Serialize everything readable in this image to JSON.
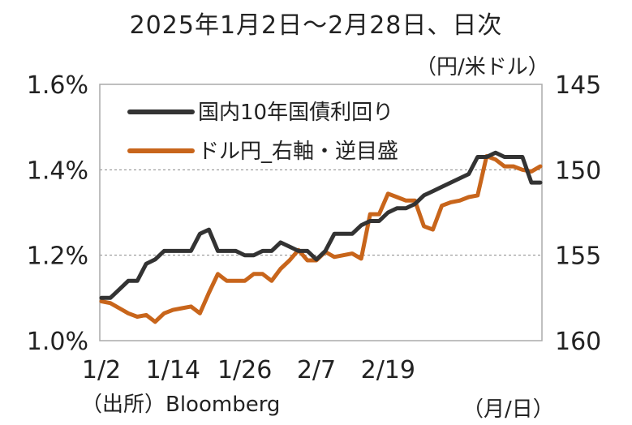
{
  "title": "2025年1月2日～2月28日、日次",
  "source": "（出所）Bloomberg",
  "chart_data": {
    "type": "line",
    "x_unit": "（月/日）",
    "left_axis": {
      "range": [
        1.0,
        1.6
      ],
      "ticks": [
        "1.0%",
        "1.2%",
        "1.4%",
        "1.6%"
      ],
      "tick_values": [
        1.0,
        1.2,
        1.4,
        1.6
      ]
    },
    "right_axis": {
      "unit": "（円/米ドル）",
      "range": [
        160,
        145
      ],
      "inverted": true,
      "ticks": [
        "145",
        "150",
        "155",
        "160"
      ],
      "tick_values": [
        145,
        150,
        155,
        160
      ]
    },
    "x_ticks": [
      {
        "label": "1/2",
        "index": 0
      },
      {
        "label": "1/14",
        "index": 8
      },
      {
        "label": "1/26",
        "index": 16
      },
      {
        "label": "2/7",
        "index": 24
      },
      {
        "label": "2/19",
        "index": 32
      }
    ],
    "grid": "horizontal dashed at 1.2% and 1.4%",
    "legend_placement": "top-left",
    "colors": {
      "jgb": "#333333",
      "usdjpy": "#c8651b",
      "grid": "#888888",
      "frame": "#aaaaaa"
    },
    "series": [
      {
        "name": "国内10年国債利回り",
        "axis": "left",
        "x": [
          0,
          1,
          2,
          3,
          4,
          5,
          6,
          7,
          8,
          9,
          10,
          11,
          12,
          13,
          14,
          15,
          16,
          17,
          18,
          19,
          20,
          21,
          22,
          23,
          24,
          25,
          26,
          27,
          28,
          29,
          30,
          31,
          32,
          33,
          34,
          35,
          36,
          37,
          38,
          39,
          40,
          41,
          42,
          43,
          44,
          45,
          46,
          47,
          48,
          49
        ],
        "values": [
          1.1,
          1.1,
          1.12,
          1.14,
          1.14,
          1.18,
          1.19,
          1.21,
          1.21,
          1.21,
          1.21,
          1.25,
          1.26,
          1.21,
          1.21,
          1.21,
          1.2,
          1.2,
          1.21,
          1.21,
          1.23,
          1.22,
          1.21,
          1.21,
          1.19,
          1.21,
          1.25,
          1.25,
          1.25,
          1.27,
          1.28,
          1.28,
          1.3,
          1.31,
          1.31,
          1.32,
          1.34,
          1.35,
          1.36,
          1.37,
          1.38,
          1.39,
          1.43,
          1.43,
          1.44,
          1.43,
          1.43,
          1.43,
          1.37,
          1.37
        ]
      },
      {
        "name": "ドル円_右軸・逆目盛",
        "axis": "right",
        "x": [
          0,
          1,
          2,
          3,
          4,
          5,
          6,
          7,
          8,
          9,
          10,
          11,
          12,
          13,
          14,
          15,
          16,
          17,
          18,
          19,
          20,
          21,
          22,
          23,
          24,
          25,
          26,
          27,
          28,
          29,
          30,
          31,
          32,
          33,
          34,
          35,
          36,
          37,
          38,
          39,
          40,
          41,
          42,
          43,
          44,
          45,
          46,
          47,
          48,
          49
        ],
        "values": [
          157.7,
          157.8,
          158.1,
          158.4,
          158.6,
          158.5,
          158.9,
          158.4,
          158.2,
          158.1,
          158.0,
          158.4,
          157.2,
          156.1,
          156.5,
          156.5,
          156.5,
          156.1,
          156.1,
          156.5,
          155.8,
          155.3,
          154.7,
          155.3,
          155.3,
          154.8,
          155.1,
          155.0,
          154.9,
          155.2,
          152.6,
          152.6,
          151.4,
          151.6,
          151.8,
          151.8,
          153.3,
          153.5,
          152.1,
          151.9,
          151.8,
          151.6,
          151.5,
          149.2,
          149.4,
          149.8,
          149.8,
          150.0,
          150.1,
          149.8
        ]
      }
    ]
  }
}
